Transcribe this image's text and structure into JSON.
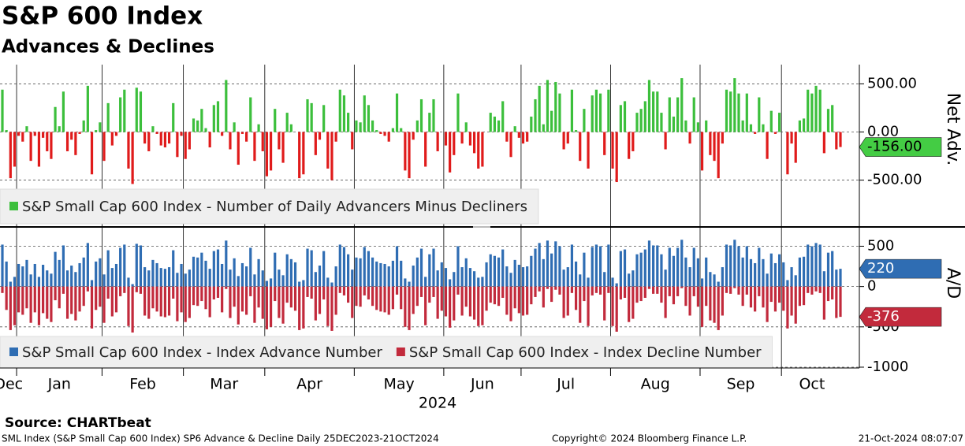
{
  "title": "S&P 600 Index",
  "subtitle": "Advances & Declines",
  "source": "Source: CHARTbeat",
  "footer": {
    "left": "SML Index (S&P Small Cap 600 Index) SP6 Advance & Decline  Daily 25DEC2023-21OCT2024",
    "center": "Copyright© 2024 Bloomberg Finance L.P.",
    "right": "21-Oct-2024 08:07:07"
  },
  "chart_data": [
    {
      "type": "bar",
      "y_label": "Net Adv.",
      "grid": true,
      "legend": "lower left",
      "ylim": [
        -970,
        700
      ],
      "yticks": [
        {
          "value": 500,
          "label": "500.00"
        },
        {
          "value": 0,
          "label": "0.00"
        },
        {
          "value": -500,
          "label": "-500.00"
        }
      ],
      "series": [
        {
          "name": "S&P Small Cap 600 Index - Number of Daily Advancers Minus Decliners",
          "color": "#3cbf3c",
          "last_label": "-156.00",
          "values": [
            440,
            20,
            -480,
            -360,
            -40,
            -100,
            60,
            -300,
            -40,
            -360,
            -60,
            -200,
            -280,
            260,
            60,
            420,
            -200,
            -80,
            -240,
            -20,
            120,
            480,
            -440,
            20,
            100,
            -300,
            300,
            -140,
            -40,
            360,
            440,
            -380,
            -540,
            460,
            420,
            -120,
            -200,
            60,
            -20,
            -140,
            -160,
            -120,
            300,
            -260,
            -40,
            -280,
            -180,
            140,
            120,
            240,
            40,
            -160,
            280,
            320,
            -40,
            540,
            -180,
            100,
            -340,
            -20,
            -100,
            360,
            -300,
            80,
            -200,
            -460,
            -400,
            240,
            -180,
            -320,
            200,
            80,
            0,
            -480,
            -440,
            340,
            300,
            -240,
            -80,
            280,
            -380,
            -500,
            -100,
            440,
            380,
            200,
            -180,
            120,
            100,
            380,
            280,
            120,
            20,
            -20,
            -40,
            -100,
            40,
            400,
            40,
            -400,
            -480,
            -80,
            120,
            340,
            -360,
            200,
            340,
            -200,
            0,
            -140,
            -420,
            -240,
            400,
            -120,
            100,
            -140,
            -220,
            -380,
            -360,
            0,
            200,
            160,
            120,
            320,
            -100,
            -260,
            60,
            -60,
            -120,
            -100,
            160,
            340,
            480,
            80,
            540,
            220,
            520,
            400,
            -180,
            -120,
            440,
            20,
            -300,
            240,
            -380,
            380,
            440,
            400,
            -240,
            440,
            -380,
            -520,
            280,
            320,
            -280,
            -200,
            200,
            240,
            320,
            540,
            420,
            420,
            200,
            -180,
            360,
            160,
            360,
            560,
            120,
            -120,
            360,
            100,
            -400,
            120,
            -240,
            -300,
            -480,
            -120,
            440,
            420,
            560,
            400,
            120,
            400,
            80,
            -20,
            360,
            80,
            -280,
            220,
            -20,
            200,
            0,
            -440,
            -120,
            -320,
            120,
            140,
            440,
            400,
            480,
            440,
            -220,
            240,
            280,
            -180,
            -156
          ]
        }
      ]
    },
    {
      "type": "bar",
      "y_label": "A/D",
      "x_label": "2024",
      "grid": true,
      "legend": "lower left",
      "ylim": [
        -1010,
        700
      ],
      "yticks": [
        500,
        0,
        -500,
        -1000
      ],
      "categories": [
        "Dec",
        null,
        null,
        null,
        "Jan",
        null,
        null,
        null,
        null,
        null,
        null,
        null,
        null,
        null,
        null,
        null,
        null,
        null,
        null,
        null,
        null,
        null,
        null,
        null,
        null,
        "Feb",
        null,
        null,
        null,
        null,
        null,
        null,
        null,
        null,
        null,
        null,
        null,
        null,
        null,
        null,
        null,
        null,
        null,
        null,
        null,
        "Mar",
        null,
        null,
        null,
        null,
        null,
        null,
        null,
        null,
        null,
        null,
        null,
        null,
        null,
        null,
        null,
        null,
        null,
        null,
        null,
        "Apr",
        null,
        null,
        null,
        null,
        null,
        null,
        null,
        null,
        null,
        null,
        null,
        null,
        null,
        null,
        null,
        null,
        null,
        null,
        null,
        null,
        null,
        "May",
        null,
        null,
        null,
        null,
        null,
        null,
        null,
        null,
        null,
        null,
        null,
        null,
        null,
        null,
        null,
        null,
        null,
        null,
        null,
        null,
        null,
        "Jun",
        null,
        null,
        null,
        null,
        null,
        null,
        null,
        null,
        null,
        null,
        null,
        null,
        null,
        null,
        null,
        null,
        null,
        null,
        "Jul",
        null,
        null,
        null,
        null,
        null,
        null,
        null,
        null,
        null,
        null,
        null,
        null,
        null,
        null,
        null,
        null,
        null,
        null,
        null,
        null,
        null,
        "Aug",
        null,
        null,
        null,
        null,
        null,
        null,
        null,
        null,
        null,
        null,
        null,
        null,
        null,
        null,
        null,
        null,
        null,
        null,
        null,
        null,
        null,
        "Sep",
        null,
        null,
        null,
        null,
        null,
        null,
        null,
        null,
        null,
        null,
        null,
        null,
        null,
        null,
        null,
        null,
        null,
        null,
        null,
        "Oct",
        null,
        null,
        null,
        null,
        null,
        null,
        null,
        null,
        null,
        null,
        null,
        null,
        null,
        null
      ],
      "series": [
        {
          "name": "S&P Small Cap 600 Index - Index Advance Number",
          "color": "#2f6db3",
          "last_label": "220",
          "values": [
            520,
            310,
            60,
            120,
            280,
            250,
            330,
            150,
            280,
            120,
            270,
            200,
            160,
            430,
            330,
            510,
            200,
            260,
            180,
            290,
            360,
            540,
            80,
            310,
            350,
            150,
            450,
            230,
            280,
            480,
            520,
            110,
            30,
            530,
            510,
            240,
            200,
            330,
            290,
            230,
            220,
            240,
            450,
            170,
            280,
            160,
            210,
            370,
            360,
            420,
            320,
            220,
            440,
            460,
            280,
            570,
            210,
            350,
            130,
            290,
            250,
            480,
            150,
            340,
            200,
            70,
            100,
            420,
            210,
            140,
            400,
            340,
            300,
            60,
            80,
            470,
            450,
            180,
            260,
            440,
            110,
            50,
            250,
            520,
            490,
            400,
            210,
            360,
            350,
            490,
            440,
            360,
            310,
            290,
            280,
            250,
            320,
            500,
            320,
            100,
            60,
            260,
            360,
            470,
            120,
            400,
            470,
            200,
            300,
            230,
            90,
            180,
            500,
            240,
            350,
            230,
            190,
            110,
            120,
            300,
            400,
            380,
            360,
            460,
            250,
            170,
            330,
            270,
            240,
            250,
            380,
            470,
            540,
            340,
            570,
            410,
            560,
            500,
            210,
            240,
            520,
            310,
            150,
            420,
            110,
            490,
            520,
            500,
            180,
            520,
            110,
            40,
            440,
            460,
            160,
            200,
            400,
            420,
            460,
            570,
            510,
            510,
            400,
            210,
            480,
            380,
            480,
            580,
            360,
            240,
            480,
            350,
            100,
            360,
            180,
            150,
            60,
            240,
            520,
            510,
            580,
            500,
            360,
            500,
            340,
            290,
            480,
            340,
            160,
            410,
            290,
            400,
            300,
            80,
            240,
            140,
            360,
            370,
            520,
            500,
            540,
            520,
            190,
            420,
            440,
            210,
            220
          ]
        },
        {
          "name": "S&P Small Cap 600 Index - Index Decline Number",
          "color": "#c22a3c",
          "last_label": "-376",
          "values": [
            -80,
            -290,
            -540,
            -480,
            -320,
            -350,
            -270,
            -450,
            -320,
            -480,
            -330,
            -400,
            -440,
            -170,
            -270,
            -90,
            -400,
            -340,
            -420,
            -310,
            -240,
            -60,
            -520,
            -290,
            -250,
            -450,
            -150,
            -370,
            -320,
            -120,
            -80,
            -490,
            -570,
            -70,
            -90,
            -360,
            -400,
            -270,
            -310,
            -370,
            -380,
            -360,
            -150,
            -430,
            -320,
            -440,
            -390,
            -230,
            -240,
            -180,
            -280,
            -380,
            -160,
            -140,
            -320,
            -30,
            -390,
            -250,
            -470,
            -310,
            -350,
            -120,
            -450,
            -260,
            -400,
            -530,
            -500,
            -180,
            -390,
            -460,
            -200,
            -260,
            -300,
            -540,
            -520,
            -130,
            -150,
            -420,
            -340,
            -160,
            -490,
            -550,
            -350,
            -80,
            -110,
            -200,
            -390,
            -240,
            -250,
            -110,
            -160,
            -240,
            -290,
            -310,
            -320,
            -350,
            -280,
            -100,
            -280,
            -500,
            -540,
            -340,
            -240,
            -130,
            -480,
            -200,
            -130,
            -400,
            -300,
            -370,
            -510,
            -420,
            -100,
            -360,
            -250,
            -370,
            -410,
            -490,
            -480,
            -300,
            -200,
            -220,
            -240,
            -140,
            -350,
            -430,
            -270,
            -330,
            -360,
            -350,
            -220,
            -130,
            -60,
            -260,
            -30,
            -190,
            -40,
            -100,
            -390,
            -360,
            -80,
            -290,
            -450,
            -180,
            -490,
            -110,
            -80,
            -100,
            -420,
            -80,
            -490,
            -560,
            -160,
            -140,
            -440,
            -400,
            -200,
            -180,
            -140,
            -30,
            -90,
            -90,
            -200,
            -390,
            -120,
            -220,
            -120,
            -20,
            -240,
            -360,
            -120,
            -250,
            -500,
            -240,
            -420,
            -450,
            -540,
            -360,
            -80,
            -90,
            -20,
            -100,
            -240,
            -100,
            -260,
            -310,
            -120,
            -260,
            -440,
            -190,
            -310,
            -200,
            -300,
            -520,
            -360,
            -460,
            -240,
            -230,
            -80,
            -100,
            -60,
            -80,
            -410,
            -180,
            -160,
            -390,
            -376
          ]
        }
      ]
    }
  ]
}
